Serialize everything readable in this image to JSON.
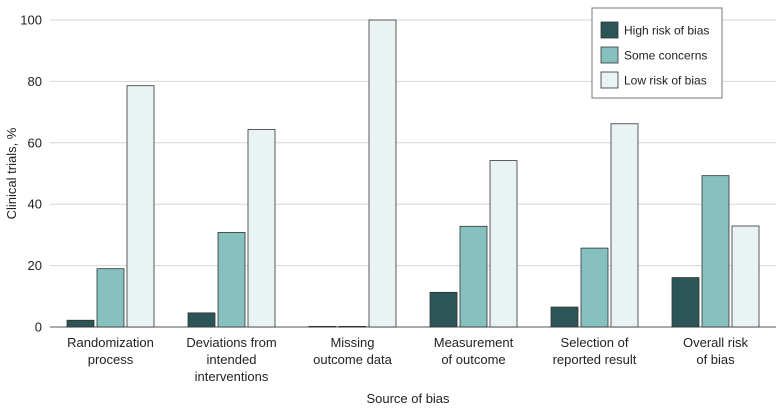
{
  "chart_data": {
    "type": "bar",
    "title": "",
    "xlabel": "Source of bias",
    "ylabel": "Clinical trials, %",
    "ylim": [
      0,
      100
    ],
    "yticks": [
      0,
      20,
      40,
      60,
      80,
      100
    ],
    "grid": true,
    "legend_position": "top-right",
    "categories": [
      [
        "Randomization",
        "process"
      ],
      [
        "Deviations from",
        "intended",
        "interventions"
      ],
      [
        "Missing",
        "outcome data"
      ],
      [
        "Measurement",
        "of outcome"
      ],
      [
        "Selection of",
        "reported result"
      ],
      [
        "Overall risk",
        "of bias"
      ]
    ],
    "series": [
      {
        "name": "High risk of bias",
        "color": "#2c5557",
        "values": [
          2.2,
          4.6,
          0.2,
          11.3,
          6.5,
          16.1
        ]
      },
      {
        "name": "Some concerns",
        "color": "#86c1c0",
        "values": [
          19.0,
          30.8,
          0.2,
          32.8,
          25.7,
          49.3
        ]
      },
      {
        "name": "Low risk of bias",
        "color": "#e9f3f4",
        "values": [
          78.6,
          64.3,
          100,
          54.2,
          66.2,
          32.9
        ]
      }
    ]
  }
}
